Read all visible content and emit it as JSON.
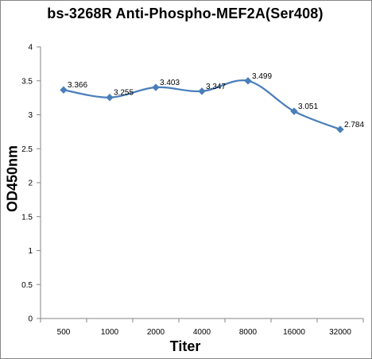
{
  "chart_data": {
    "type": "line",
    "title": "bs-3268R Anti-Phospho-MEF2A(Ser408)",
    "xlabel": "Titer",
    "ylabel": "OD450nm",
    "categories": [
      "500",
      "1000",
      "2000",
      "4000",
      "8000",
      "16000",
      "32000"
    ],
    "series": [
      {
        "values": [
          3.366,
          3.255,
          3.403,
          3.347,
          3.499,
          3.051,
          2.784
        ]
      }
    ],
    "data_labels": [
      "3.366",
      "3.255",
      "3.403",
      "3.347",
      "3.499",
      "3.051",
      "2.784"
    ],
    "ylim": [
      0,
      4
    ],
    "yticks": [
      0,
      0.5,
      1,
      1.5,
      2,
      2.5,
      3,
      3.5,
      4
    ],
    "ytick_labels": [
      "0",
      "0.5",
      "1",
      "1.5",
      "2",
      "2.5",
      "3",
      "3.5",
      "4"
    ],
    "grid": false,
    "legend": "none",
    "series_color": "#4a7ebb",
    "axis_color": "#868686"
  }
}
